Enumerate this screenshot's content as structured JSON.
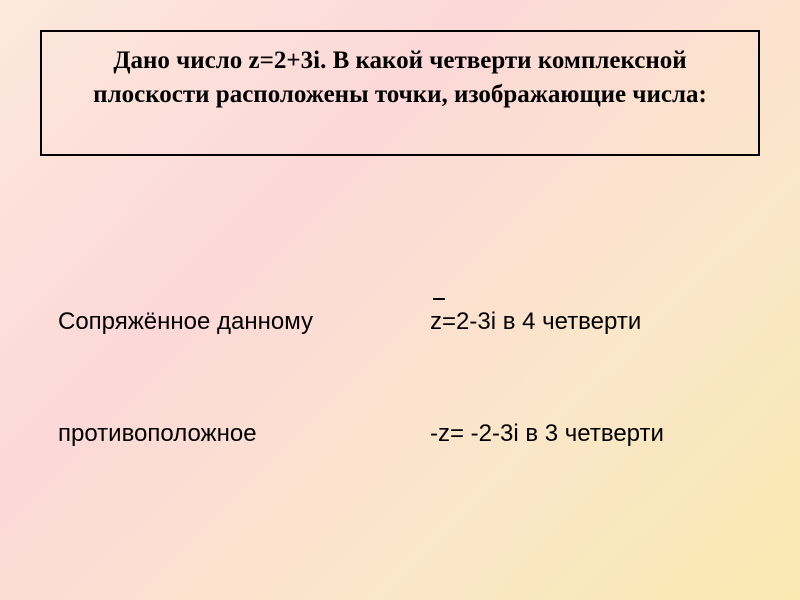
{
  "question": {
    "line1": "Дано число z=2+3i. В какой четверти комплексной",
    "line2": "плоскости расположены точки, изображающие числа:"
  },
  "rows": [
    {
      "left": "Сопряжённое данному",
      "right_letter": "z",
      "right_rest": "=2-3i  в 4 четверти",
      "has_overline": true
    },
    {
      "left": "противоположное",
      "right_full": "-z= -2-3i  в 3 четверти",
      "has_overline": false
    }
  ],
  "style": {
    "background_gradient": [
      "#fce9dd",
      "#fcd8d8",
      "#fbe7c9",
      "#f9e8b0"
    ],
    "border_color": "#000000",
    "question_fontsize": 25,
    "body_fontsize": 24,
    "question_font": "Times New Roman",
    "body_font": "Arial"
  }
}
